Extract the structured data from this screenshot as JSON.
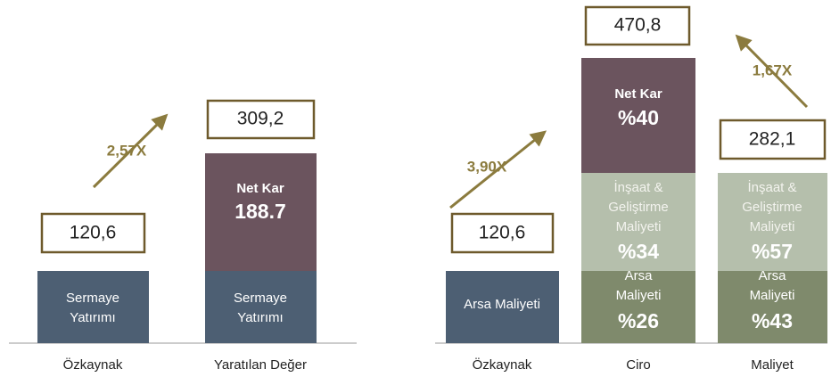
{
  "left_chart": {
    "categories": [
      "Özkaynak",
      "Yaratılan Değer"
    ],
    "bars": [
      {
        "total": "120,6",
        "segments": [
          {
            "label": [
              "Sermaye",
              "Yatırımı"
            ]
          }
        ]
      },
      {
        "total": "309,2",
        "segments": [
          {
            "label": [
              "Sermaye",
              "Yatırımı"
            ]
          },
          {
            "label": [
              "Net Kar"
            ],
            "value": "188.7"
          }
        ]
      }
    ],
    "multiplier": "2,57X"
  },
  "right_chart": {
    "categories": [
      "Özkaynak",
      "Ciro",
      "Maliyet"
    ],
    "bars": [
      {
        "total": "120,6",
        "segments": [
          {
            "label": [
              "Arsa Maliyeti"
            ]
          }
        ]
      },
      {
        "total": "470,8",
        "segments": [
          {
            "label": [
              "Arsa",
              "Maliyeti"
            ],
            "value": "%26"
          },
          {
            "label": [
              "İnşaat &",
              "Geliştirme",
              "Maliyeti"
            ],
            "value": "%34"
          },
          {
            "label": [
              "Net Kar"
            ],
            "value": "%40"
          }
        ]
      },
      {
        "total": "282,1",
        "segments": [
          {
            "label": [
              "Arsa",
              "Maliyeti"
            ],
            "value": "%43"
          },
          {
            "label": [
              "İnşaat &",
              "Geliştirme",
              "Maliyeti"
            ],
            "value": "%57"
          }
        ]
      }
    ],
    "multipliers": [
      "3,90X",
      "1,67X"
    ]
  }
}
